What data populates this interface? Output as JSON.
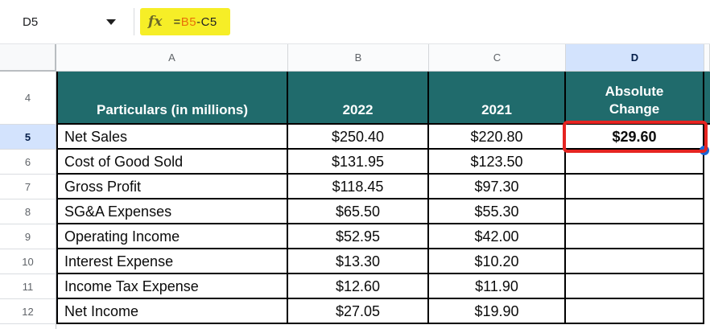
{
  "toolbar": {
    "name_box": "D5",
    "fx_label": "fx",
    "formula": {
      "eq": "=",
      "ref": "B5",
      "rest": "-C5"
    }
  },
  "column_headers": {
    "a": "A",
    "b": "B",
    "c": "C",
    "d": "D",
    "selected": "D"
  },
  "row_headers": {
    "r4": "4",
    "r5": "5",
    "r6": "6",
    "r7": "7",
    "r8": "8",
    "r9": "9",
    "r10": "10",
    "r11": "11",
    "r12": "12",
    "selected": "5"
  },
  "table": {
    "columns": {
      "particulars": "Particulars (in millions)",
      "y2022": "2022",
      "y2021": "2021",
      "change": "Absolute Change"
    },
    "rows": [
      {
        "label": "Net Sales",
        "y2022": "$250.40",
        "y2021": "$220.80",
        "change": "$29.60"
      },
      {
        "label": "Cost of Good Sold",
        "y2022": "$131.95",
        "y2021": "$123.50",
        "change": ""
      },
      {
        "label": "Gross Profit",
        "y2022": "$118.45",
        "y2021": "$97.30",
        "change": ""
      },
      {
        "label": "SG&A Expenses",
        "y2022": "$65.50",
        "y2021": "$55.30",
        "change": ""
      },
      {
        "label": "Operating Income",
        "y2022": "$52.95",
        "y2021": "$42.00",
        "change": ""
      },
      {
        "label": "Interest Expense",
        "y2022": "$13.30",
        "y2021": "$10.20",
        "change": ""
      },
      {
        "label": "Income Tax Expense",
        "y2022": "$12.60",
        "y2021": "$11.90",
        "change": ""
      },
      {
        "label": "Net Income",
        "y2022": "$27.05",
        "y2021": "$19.90",
        "change": ""
      }
    ]
  },
  "selection": {
    "active_cell": "D5",
    "value": "$29.60",
    "formula": "=B5-C5"
  },
  "colors": {
    "header_teal": "#206b6c",
    "selected_header_bg": "#d3e3fd",
    "selected_header_text": "#041e49",
    "annotation_yellow": "#f6ee27",
    "annotation_red": "#e52421",
    "fill_handle_blue": "#1a66d4",
    "formula_ref_orange": "#e8710a"
  }
}
